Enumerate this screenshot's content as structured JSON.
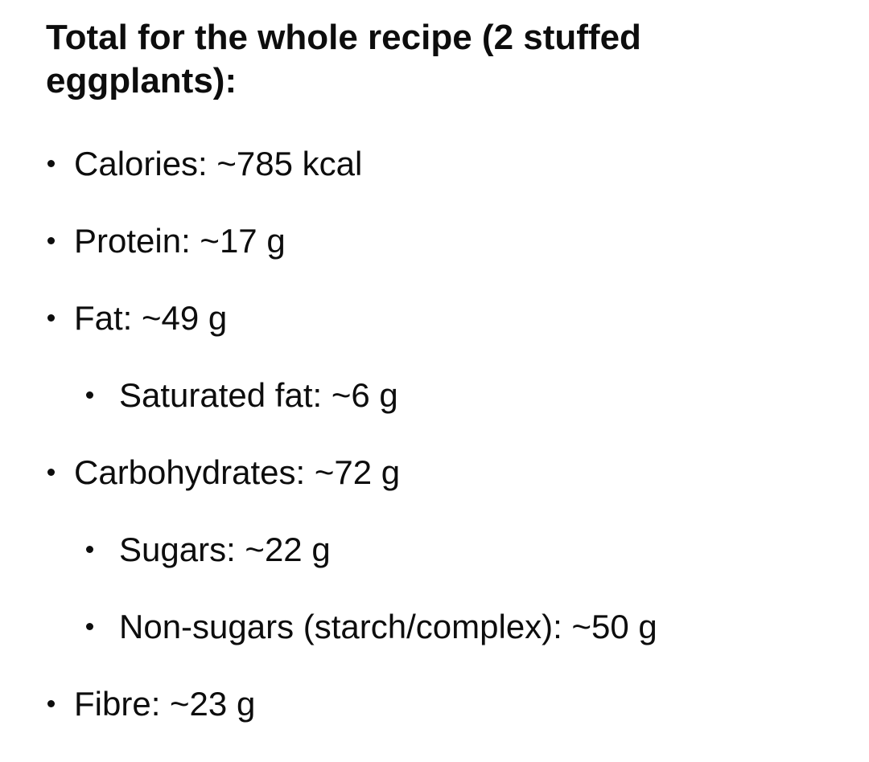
{
  "page": {
    "background_color": "#ffffff",
    "text_color": "#0d0d0d"
  },
  "heading": {
    "text": "Total for the whole recipe (2 stuffed eggplants):"
  },
  "nutrition": {
    "items": [
      {
        "label": "Calories",
        "value": "~785 kcal",
        "text": "Calories: ~785 kcal"
      },
      {
        "label": "Protein",
        "value": "~17 g",
        "text": "Protein: ~17 g"
      },
      {
        "label": "Fat",
        "value": "~49 g",
        "text": "Fat: ~49 g",
        "children": [
          {
            "label": "Saturated fat",
            "value": "~6 g",
            "text": "Saturated fat: ~6 g"
          }
        ]
      },
      {
        "label": "Carbohydrates",
        "value": "~72 g",
        "text": "Carbohydrates: ~72 g",
        "children": [
          {
            "label": "Sugars",
            "value": "~22 g",
            "text": "Sugars: ~22 g"
          },
          {
            "label": "Non-sugars (starch/complex)",
            "value": "~50 g",
            "text": "Non-sugars (starch/complex): ~50 g"
          }
        ]
      },
      {
        "label": "Fibre",
        "value": "~23 g",
        "text": "Fibre: ~23 g"
      }
    ]
  }
}
